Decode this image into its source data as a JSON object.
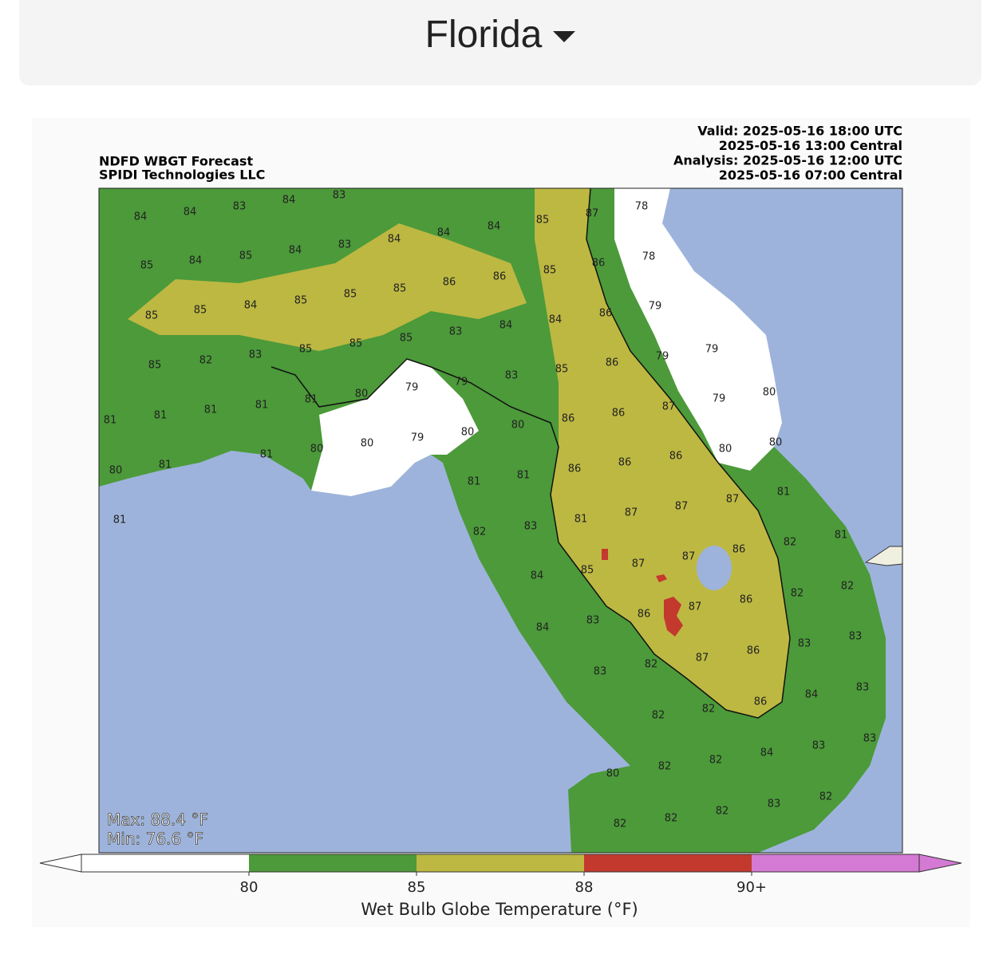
{
  "header": {
    "title": "Florida"
  },
  "map": {
    "title_left": [
      "NDFD WBGT Forecast",
      "SPIDI Technologies LLC"
    ],
    "title_right": [
      "Valid: 2025-05-16 18:00 UTC",
      "2025-05-16 13:00 Central",
      "Analysis: 2025-05-16 12:00 UTC",
      "2025-05-16 07:00 Central"
    ],
    "max": "Max: 88.4 °F",
    "min": "Min: 76.6 °F",
    "labels": [
      84,
      84,
      83,
      84,
      83,
      85,
      84,
      85,
      84,
      83,
      84,
      84,
      84,
      85,
      87,
      78,
      85,
      85,
      84,
      85,
      85,
      85,
      86,
      86,
      85,
      86,
      78,
      85,
      82,
      83,
      85,
      85,
      85,
      83,
      84,
      84,
      86,
      79,
      81,
      81,
      81,
      81,
      81,
      80,
      79,
      79,
      83,
      85,
      86,
      79,
      79,
      80,
      81,
      81,
      80,
      80,
      79,
      80,
      80,
      86,
      86,
      87,
      79,
      80,
      81,
      81,
      81,
      86,
      86,
      86,
      80,
      80,
      82,
      83,
      81,
      87,
      87,
      87,
      81,
      84,
      85,
      87,
      87,
      86,
      82,
      81,
      84,
      83,
      86,
      87,
      86,
      82,
      82,
      83,
      82,
      87,
      86,
      83,
      83,
      82,
      82,
      86,
      84,
      83,
      80,
      82,
      82,
      84,
      83,
      83,
      82,
      82,
      82,
      83,
      82
    ]
  },
  "colorbar": {
    "label": "Wet Bulb Globe Temperature (°F)",
    "ticks": [
      "80",
      "85",
      "88",
      "90+"
    ],
    "colors": [
      "#ffffff",
      "#4c9a3a",
      "#bdb842",
      "#c3392e",
      "#d47ad4"
    ]
  }
}
